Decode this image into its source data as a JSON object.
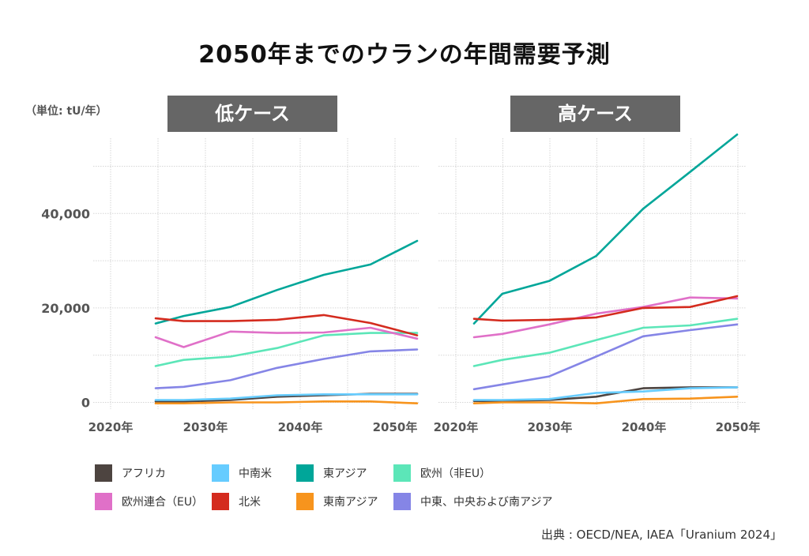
{
  "title": "2050年までのウランの年間需要予測",
  "unit_label": "（単位: tU/年）",
  "source": "出典 : OECD/NEA, IAEA「Uranium 2024」",
  "chart_data": [
    {
      "type": "line",
      "panel": "low",
      "title": "低ケース",
      "xlabel": "",
      "ylabel": "単位: tU/年",
      "x_ticks": [
        "2020年",
        "2030年",
        "2040年",
        "2050年"
      ],
      "x_tick_values": [
        2020,
        2030,
        2040,
        2050
      ],
      "y_ticks": [
        "0",
        "20,000",
        "40,000"
      ],
      "y_tick_values": [
        0,
        20000,
        40000
      ],
      "y_minor_grid": [
        10000,
        30000,
        50000
      ],
      "xlim": [
        2020,
        2050
      ],
      "ylim": [
        -1000,
        56000
      ],
      "grid": true,
      "x": [
        2022,
        2025,
        2030,
        2035,
        2040,
        2045,
        2050
      ],
      "series": [
        {
          "name": "アフリカ",
          "color": "#4d4440",
          "values": [
            200,
            200,
            500,
            1200,
            1500,
            1800,
            1800
          ]
        },
        {
          "name": "中南米",
          "color": "#66ccff",
          "values": [
            500,
            500,
            800,
            1500,
            1700,
            1700,
            1700
          ]
        },
        {
          "name": "東アジア",
          "color": "#00a699",
          "values": [
            16700,
            18300,
            20200,
            23800,
            27000,
            29200,
            34200
          ]
        },
        {
          "name": "欧州（非EU）",
          "color": "#5ce6b8",
          "values": [
            7700,
            9000,
            9700,
            11500,
            14200,
            14700,
            14700
          ]
        },
        {
          "name": "欧州連合（EU）",
          "color": "#e070c8",
          "values": [
            13800,
            11700,
            15000,
            14700,
            14800,
            15800,
            13500
          ]
        },
        {
          "name": "北米",
          "color": "#d42b1e",
          "values": [
            17800,
            17200,
            17200,
            17500,
            18500,
            16800,
            14200
          ]
        },
        {
          "name": "東南アジア",
          "color": "#f7941d",
          "values": [
            -200,
            -200,
            0,
            0,
            200,
            200,
            -200
          ]
        },
        {
          "name": "中東、中央および南アジア",
          "color": "#8585e6",
          "values": [
            3000,
            3300,
            4700,
            7300,
            9200,
            10800,
            11200
          ]
        }
      ]
    },
    {
      "type": "line",
      "panel": "high",
      "title": "高ケース",
      "xlabel": "",
      "ylabel": "単位: tU/年",
      "x_ticks": [
        "2020年",
        "2030年",
        "2040年",
        "2050年"
      ],
      "x_tick_values": [
        2020,
        2030,
        2040,
        2050
      ],
      "y_ticks": [],
      "y_tick_values": [
        0,
        20000,
        40000
      ],
      "y_minor_grid": [
        10000,
        30000,
        50000
      ],
      "xlim": [
        2020,
        2050
      ],
      "ylim": [
        -1000,
        56000
      ],
      "grid": true,
      "x": [
        2022,
        2025,
        2030,
        2035,
        2040,
        2045,
        2050
      ],
      "series": [
        {
          "name": "アフリカ",
          "color": "#4d4440",
          "values": [
            300,
            300,
            500,
            1200,
            3000,
            3200,
            3200
          ]
        },
        {
          "name": "中南米",
          "color": "#66ccff",
          "values": [
            500,
            500,
            700,
            2000,
            2300,
            3000,
            3200
          ]
        },
        {
          "name": "東アジア",
          "color": "#00a699",
          "values": [
            16700,
            23000,
            25700,
            31000,
            41000,
            48800,
            56700
          ]
        },
        {
          "name": "欧州（非EU）",
          "color": "#5ce6b8",
          "values": [
            7700,
            9000,
            10500,
            13200,
            15800,
            16300,
            17700
          ]
        },
        {
          "name": "欧州連合（EU）",
          "color": "#e070c8",
          "values": [
            13800,
            14500,
            16500,
            18800,
            20200,
            22200,
            22000
          ]
        },
        {
          "name": "北米",
          "color": "#d42b1e",
          "values": [
            17700,
            17300,
            17500,
            18000,
            20000,
            20200,
            22500
          ]
        },
        {
          "name": "東南アジア",
          "color": "#f7941d",
          "values": [
            -200,
            0,
            0,
            -200,
            700,
            800,
            1200
          ]
        },
        {
          "name": "中東、中央および南アジア",
          "color": "#8585e6",
          "values": [
            2800,
            3800,
            5500,
            9700,
            14000,
            15300,
            16500
          ]
        }
      ]
    }
  ],
  "legend": [
    {
      "label": "アフリカ",
      "color": "#4d4440"
    },
    {
      "label": "中南米",
      "color": "#66ccff"
    },
    {
      "label": "東アジア",
      "color": "#00a699"
    },
    {
      "label": "欧州（非EU）",
      "color": "#5ce6b8"
    },
    {
      "label": "欧州連合（EU）",
      "color": "#e070c8"
    },
    {
      "label": "北米",
      "color": "#d42b1e"
    },
    {
      "label": "東南アジア",
      "color": "#f7941d"
    },
    {
      "label": "中東、中央および南アジア",
      "color": "#8585e6"
    }
  ]
}
